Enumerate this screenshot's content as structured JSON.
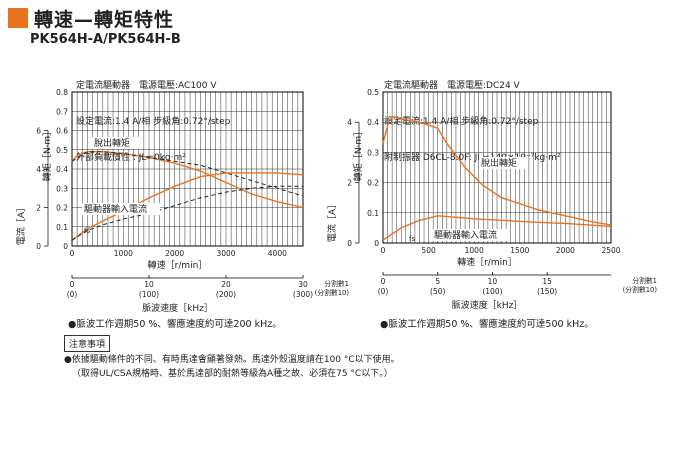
{
  "header": {
    "title": "轉速—轉矩特性",
    "subtitle": "PK564H-A/PK564H-B"
  },
  "colors": {
    "accent": "#e8731f",
    "curve": "#e8731f",
    "ref": "#222222",
    "grid": "#333333"
  },
  "chart_data": [
    {
      "type": "line",
      "conditions": [
        "定電流驅動器　電源電壓:AC100 V",
        "設定電流:1.4 A/相 步級角:0.72°/step",
        "外部負載慣性 : JL=0kg·m²"
      ],
      "xlabel": "轉速［r/min］",
      "ylabel": "轉矩［N·m］",
      "y2label": "電流［A］",
      "xlim": [
        0,
        4500
      ],
      "ylim": [
        0,
        0.8
      ],
      "xticks": [
        "0",
        "1000",
        "2000",
        "3000",
        "4000"
      ],
      "xtick_values": [
        0,
        1000,
        2000,
        3000,
        4000
      ],
      "yticks": [
        "0",
        "0.1",
        "0.2",
        "0.3",
        "0.4",
        "0.5",
        "0.6",
        "0.7",
        "0.8"
      ],
      "current_ticks": [
        "0",
        "2",
        "4",
        "6"
      ],
      "current_tick_values": [
        0,
        2,
        4,
        6
      ],
      "current_max": 8,
      "pulse_label": "脈波速度［kHz］",
      "pulse_ticks": [
        {
          "rpm": 0,
          "top": "0",
          "bottom": "(0)"
        },
        {
          "rpm": 1500,
          "top": "10",
          "bottom": "(100)"
        },
        {
          "rpm": 3000,
          "top": "20",
          "bottom": "(200)"
        },
        {
          "rpm": 4500,
          "top": "30",
          "bottom": "(300)"
        }
      ],
      "division_labels": [
        "分割數1",
        "(分割數10)"
      ],
      "series": [
        {
          "name": "脫出轉矩",
          "style": "solid",
          "x": [
            0,
            100,
            300,
            600,
            1000,
            1500,
            2000,
            2500,
            3000,
            3500,
            4000,
            4500
          ],
          "y": [
            0.44,
            0.47,
            0.49,
            0.49,
            0.48,
            0.46,
            0.43,
            0.39,
            0.33,
            0.27,
            0.23,
            0.2
          ]
        },
        {
          "name": "",
          "style": "dashed",
          "x": [
            0,
            300,
            600,
            1000,
            1500,
            2000,
            2500,
            3000,
            3500,
            4000,
            4500
          ],
          "y": [
            0.44,
            0.49,
            0.49,
            0.48,
            0.46,
            0.44,
            0.42,
            0.38,
            0.34,
            0.3,
            0.26
          ]
        },
        {
          "name": "驅動器輸入電流",
          "style": "solid",
          "axis": "current",
          "x": [
            0,
            300,
            600,
            1000,
            1500,
            2000,
            2500,
            3000,
            3500,
            4000,
            4500
          ],
          "y": [
            0.3,
            0.9,
            1.3,
            1.8,
            2.5,
            3.1,
            3.6,
            3.8,
            3.8,
            3.8,
            3.7
          ]
        },
        {
          "name": "",
          "style": "dashed",
          "axis": "current",
          "x": [
            0,
            300,
            600,
            1000,
            1500,
            2000,
            2500,
            3000,
            3500,
            4000,
            4500
          ],
          "y": [
            0.3,
            0.8,
            1.1,
            1.4,
            1.7,
            2.1,
            2.5,
            2.8,
            3.0,
            3.1,
            3.1
          ]
        }
      ],
      "annotations": {
        "pullout": "脫出轉矩",
        "current": "驅動器輸入電流",
        "fs": "fs"
      },
      "note": "●脈波工作週期50 %、響應速度約可達200 kHz。"
    },
    {
      "type": "line",
      "conditions": [
        "定電流驅動器　電源電壓:DC24 V",
        "設定電流:1.4 A/相 步級角:0.72°/step",
        "附制振器 D6CL-8.0F: JL=140×10⁻⁷kg·m²"
      ],
      "xlabel": "轉速［r/min］",
      "ylabel": "轉矩［N·m］",
      "y2label": "電流［A］",
      "xlim": [
        0,
        2500
      ],
      "ylim": [
        0,
        0.5
      ],
      "xticks": [
        "0",
        "500",
        "1000",
        "1500",
        "2000",
        "2500"
      ],
      "xtick_values": [
        0,
        500,
        1000,
        1500,
        2000,
        2500
      ],
      "yticks": [
        "0",
        "0.1",
        "0.2",
        "0.3",
        "0.4",
        "0.5"
      ],
      "current_ticks": [
        "0",
        "2",
        "4"
      ],
      "current_tick_values": [
        0,
        2,
        4
      ],
      "current_max": 5,
      "pulse_label": "脈波速度［kHz］",
      "pulse_ticks": [
        {
          "rpm": 0,
          "top": "0",
          "bottom": "(0)"
        },
        {
          "rpm": 600,
          "top": "5",
          "bottom": "(50)"
        },
        {
          "rpm": 1200,
          "top": "10",
          "bottom": "(100)"
        },
        {
          "rpm": 1800,
          "top": "15",
          "bottom": "(150)"
        }
      ],
      "division_labels": [
        "分割數1",
        "(分割數10)"
      ],
      "series": [
        {
          "name": "脫出轉矩",
          "style": "solid",
          "x": [
            0,
            60,
            100,
            200,
            400,
            600,
            700,
            900,
            1100,
            1300,
            1500,
            1700,
            2000,
            2300,
            2500
          ],
          "y": [
            0.33,
            0.4,
            0.42,
            0.41,
            0.4,
            0.38,
            0.33,
            0.25,
            0.19,
            0.15,
            0.13,
            0.11,
            0.09,
            0.07,
            0.06
          ]
        },
        {
          "name": "驅動器輸入電流",
          "style": "solid",
          "axis": "current",
          "x": [
            0,
            100,
            200,
            400,
            600,
            800,
            1000,
            1300,
            1600,
            2000,
            2500
          ],
          "y": [
            0.1,
            0.3,
            0.5,
            0.75,
            0.9,
            0.85,
            0.8,
            0.75,
            0.7,
            0.65,
            0.55
          ]
        }
      ],
      "annotations": {
        "pullout": "脫出轉矩",
        "current": "驅動器輸入電流",
        "fs": "fs"
      },
      "note": "●脈波工作週期50 %、響應速度約可達500 kHz。"
    }
  ],
  "caution": {
    "title": "注意事項",
    "line1": "●依據驅動條件的不同、有時馬達會顯著發熱。馬達外殼溫度請在100 °C以下使用。",
    "line2": "（取得UL/CSA規格時、基於馬達部的耐熱等級為A種之故、必須在75 °C以下。）"
  }
}
